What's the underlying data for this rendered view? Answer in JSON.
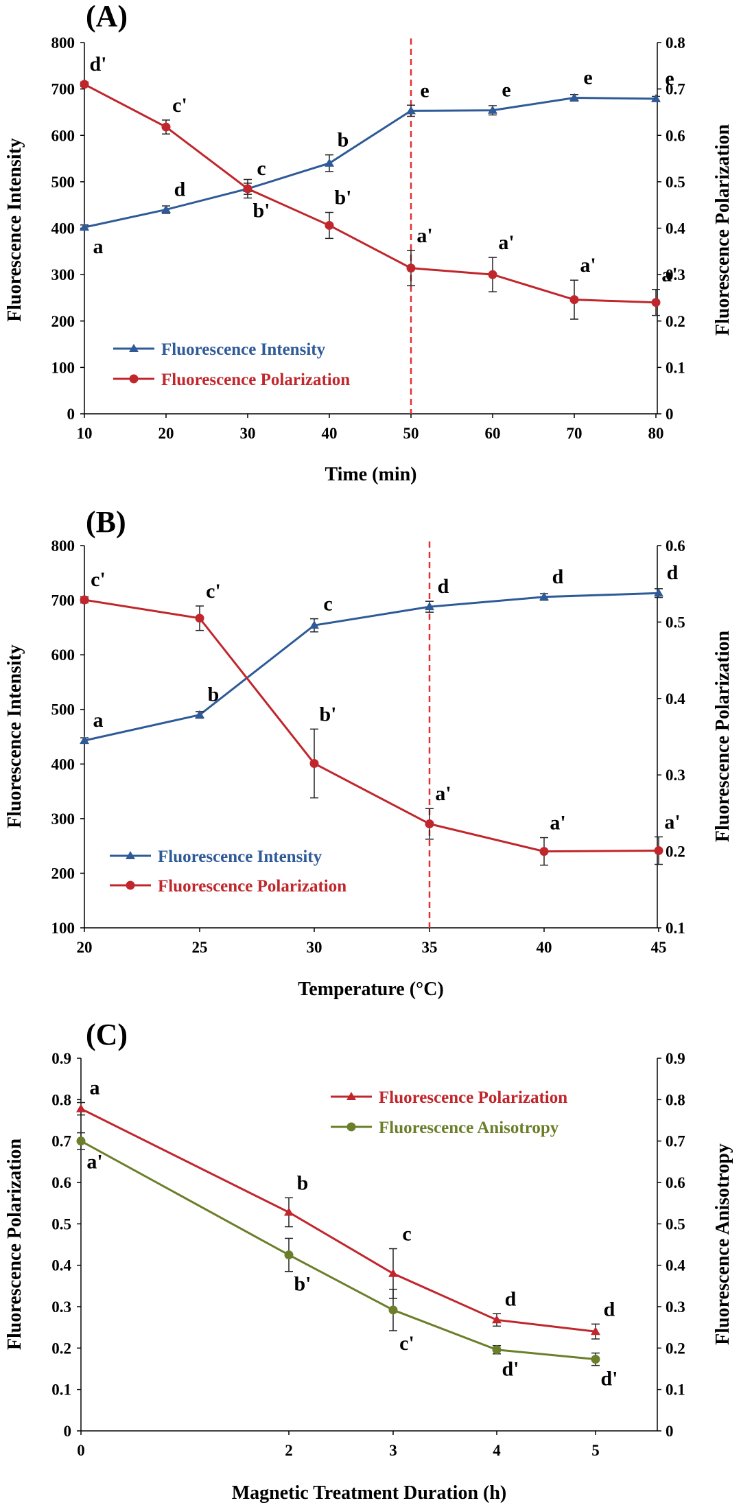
{
  "colors": {
    "blue": "#2E5A98",
    "red": "#C0262B",
    "green": "#6B7E2A",
    "axis": "#000000",
    "guide": "#E03030"
  },
  "chart_data": [
    {
      "type": "line",
      "panel_label": "(A)",
      "xlabel": "Time (min)",
      "ylabel_left": "Fluorescence Intensity",
      "ylabel_right": "Fluorescence Polarization",
      "x_ticks": [
        "10",
        "20",
        "30",
        "40",
        "50",
        "60",
        "70",
        "80"
      ],
      "y_left_ticks": [
        "0",
        "100",
        "200",
        "300",
        "400",
        "500",
        "600",
        "700",
        "800"
      ],
      "y_right_ticks": [
        "0",
        "0.1",
        "0.2",
        "0.3",
        "0.4",
        "0.5",
        "0.6",
        "0.7",
        "0.8"
      ],
      "xlim": [
        10,
        80
      ],
      "ylim_left": [
        0,
        800
      ],
      "ylim_right": [
        0,
        0.8
      ],
      "reference_line_x": 50,
      "legend_position": "lower-left",
      "series": [
        {
          "name": "Fluorescence Intensity",
          "axis": "left",
          "marker": "triangle",
          "color": "#2E5A98",
          "x": [
            10,
            20,
            30,
            40,
            50,
            60,
            70,
            80
          ],
          "values": [
            402,
            440,
            485,
            540,
            653,
            654,
            681,
            679
          ],
          "errors": [
            5,
            8,
            12,
            18,
            12,
            10,
            7,
            5
          ],
          "labels": [
            "a",
            "d",
            "c",
            "b",
            "e",
            "e",
            "e",
            "e"
          ],
          "label_side": [
            "below",
            "above",
            "above",
            "above",
            "above",
            "above",
            "above",
            "above"
          ]
        },
        {
          "name": "Fluorescence Polarization",
          "axis": "right",
          "marker": "circle",
          "color": "#C0262B",
          "x": [
            10,
            20,
            30,
            40,
            50,
            60,
            70,
            80
          ],
          "values": [
            0.71,
            0.618,
            0.485,
            0.406,
            0.314,
            0.3,
            0.246,
            0.24
          ],
          "errors": [
            0.005,
            0.015,
            0.02,
            0.028,
            0.038,
            0.037,
            0.042,
            0.028
          ],
          "labels": [
            "d'",
            "c'",
            "b'",
            "b'",
            "a'",
            "a'",
            "a'",
            "a'"
          ],
          "label_side": [
            "above",
            "above",
            "below",
            "above",
            "above",
            "above",
            "above",
            "above"
          ]
        }
      ]
    },
    {
      "type": "line",
      "panel_label": "(B)",
      "xlabel": "Temperature (°C)",
      "ylabel_left": "Fluorescence Intensity",
      "ylabel_right": "Fluorescence Polarization",
      "x_ticks": [
        "20",
        "25",
        "30",
        "35",
        "40",
        "45"
      ],
      "y_left_ticks": [
        "100",
        "200",
        "300",
        "400",
        "500",
        "600",
        "700",
        "800"
      ],
      "y_right_ticks": [
        "0.1",
        "0.2",
        "0.3",
        "0.4",
        "0.5",
        "0.6"
      ],
      "xlim": [
        20,
        45
      ],
      "ylim_left": [
        100,
        800
      ],
      "ylim_right": [
        0.1,
        0.6
      ],
      "reference_line_x": 35,
      "legend_position": "lower-left",
      "series": [
        {
          "name": "Fluorescence Intensity",
          "axis": "left",
          "marker": "triangle",
          "color": "#2E5A98",
          "x": [
            20,
            25,
            30,
            35,
            40,
            45
          ],
          "values": [
            443,
            490,
            654,
            688,
            706,
            713
          ],
          "errors": [
            5,
            6,
            12,
            10,
            6,
            8
          ],
          "labels": [
            "a",
            "b",
            "c",
            "d",
            "d",
            "d"
          ],
          "label_side": [
            "above",
            "above",
            "above",
            "above",
            "above",
            "above"
          ]
        },
        {
          "name": "Fluorescence Polarization",
          "axis": "right",
          "marker": "circle",
          "color": "#C0262B",
          "x": [
            20,
            25,
            30,
            35,
            40,
            45
          ],
          "values": [
            0.529,
            0.505,
            0.315,
            0.236,
            0.2,
            0.201
          ],
          "errors": [
            0.004,
            0.016,
            0.045,
            0.02,
            0.018,
            0.018
          ],
          "labels": [
            "c'",
            "c'",
            "b'",
            "a'",
            "a'",
            "a'"
          ],
          "label_side": [
            "above",
            "above",
            "above",
            "above",
            "above",
            "above"
          ]
        }
      ]
    },
    {
      "type": "line",
      "panel_label": "(C)",
      "xlabel": "Magnetic Treatment Duration (h)",
      "ylabel_left": "Fluorescence Polarization",
      "ylabel_right": "Fluorescence Anisotropy",
      "x_ticks": [
        "0",
        "2",
        "3",
        "4",
        "5"
      ],
      "y_left_ticks": [
        "0",
        "0.1",
        "0.2",
        "0.3",
        "0.4",
        "0.5",
        "0.6",
        "0.7",
        "0.8",
        "0.9"
      ],
      "y_right_ticks": [
        "0",
        "0.1",
        "0.2",
        "0.3",
        "0.4",
        "0.5",
        "0.6",
        "0.7",
        "0.8",
        "0.9"
      ],
      "xlim": [
        0,
        5
      ],
      "ylim_left": [
        0,
        0.9
      ],
      "ylim_right": [
        0,
        0.9
      ],
      "legend_position": "upper-right",
      "series": [
        {
          "name": "Fluorescence Polarization",
          "axis": "left",
          "marker": "triangle",
          "color": "#C0262B",
          "x": [
            0,
            2,
            3,
            4,
            5
          ],
          "values": [
            0.778,
            0.528,
            0.38,
            0.268,
            0.24
          ],
          "errors": [
            0.015,
            0.035,
            0.06,
            0.015,
            0.018
          ],
          "labels": [
            "a",
            "b",
            "c",
            "d",
            "d"
          ],
          "label_side": [
            "above",
            "above",
            "above",
            "above",
            "above"
          ]
        },
        {
          "name": "Fluorescence Anisotropy",
          "axis": "right",
          "marker": "circle",
          "color": "#6B7E2A",
          "x": [
            0,
            2,
            3,
            4,
            5
          ],
          "values": [
            0.7,
            0.425,
            0.292,
            0.196,
            0.173
          ],
          "errors": [
            0.02,
            0.04,
            0.05,
            0.01,
            0.015
          ],
          "labels": [
            "a'",
            "b'",
            "c'",
            "d'",
            "d'"
          ],
          "label_side": [
            "below",
            "below",
            "below",
            "below",
            "below"
          ]
        }
      ]
    }
  ]
}
